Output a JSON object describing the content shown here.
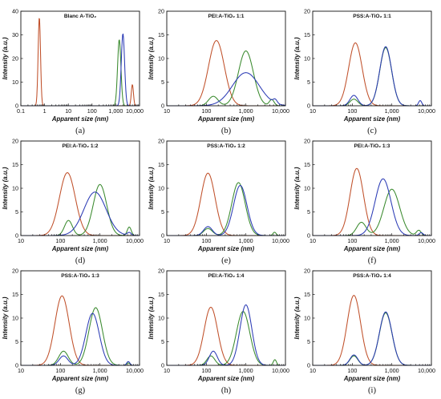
{
  "colors": {
    "red": "#c0502a",
    "green": "#3a8a2e",
    "blue": "#2b3bb5"
  },
  "chart_data": [
    {
      "type": "line",
      "letter": "(a)",
      "title": "Blanc A-TiO₂",
      "xlabel": "Apparent size (nm)",
      "ylabel": "Intensity (a.u.)",
      "xscale": "log",
      "xlim": [
        0.1,
        10000
      ],
      "ylim": [
        0,
        40
      ],
      "xticks": [
        "0.1",
        "1",
        "10",
        "100",
        "1,000",
        "10,000"
      ],
      "yticks": [
        "0",
        "10",
        "20",
        "30",
        "40"
      ],
      "series": [
        {
          "color": "red",
          "peaks": [
            [
              0.6,
              37.5,
              0.05
            ],
            [
              5000,
              9,
              0.045
            ]
          ]
        },
        {
          "color": "green",
          "peaks": [
            [
              1400,
              28,
              0.07
            ]
          ]
        },
        {
          "color": "blue",
          "peaks": [
            [
              2000,
              30.5,
              0.07
            ]
          ]
        }
      ]
    },
    {
      "type": "line",
      "letter": "(b)",
      "title": "PEI:A-TiO₂ 1:1",
      "xlabel": "Apparent size (nm)",
      "ylabel": "Intensity (a.u.)",
      "xscale": "log",
      "xlim": [
        10,
        10000
      ],
      "ylim": [
        0,
        20
      ],
      "xticks": [
        "10",
        "100",
        "1,000",
        "10,000"
      ],
      "yticks": [
        "0",
        "5",
        "10",
        "15",
        "20"
      ],
      "series": [
        {
          "color": "red",
          "peaks": [
            [
              180,
              13.8,
              0.2
            ]
          ]
        },
        {
          "color": "green",
          "peaks": [
            [
              150,
              2,
              0.12
            ],
            [
              1000,
              11.6,
              0.19
            ],
            [
              4500,
              1.3,
              0.06
            ]
          ]
        },
        {
          "color": "blue",
          "peaks": [
            [
              1000,
              7,
              0.34
            ],
            [
              5500,
              0.8,
              0.05
            ]
          ]
        }
      ]
    },
    {
      "type": "line",
      "letter": "(c)",
      "title": "PSS:A-TiO₂ 1:1",
      "xlabel": "Apparent size (nm)",
      "ylabel": "Intensity (a.u.)",
      "xscale": "log",
      "xlim": [
        10,
        10000
      ],
      "ylim": [
        0,
        20
      ],
      "xticks": [
        "10",
        "100",
        "1,000",
        "10,000"
      ],
      "yticks": [
        "0",
        "5",
        "10",
        "15",
        "20"
      ],
      "series": [
        {
          "color": "red",
          "peaks": [
            [
              120,
              13.3,
              0.17
            ]
          ]
        },
        {
          "color": "green",
          "peaks": [
            [
              110,
              1.4,
              0.1
            ],
            [
              700,
              12.3,
              0.15
            ]
          ]
        },
        {
          "color": "blue",
          "peaks": [
            [
              110,
              2.2,
              0.1
            ],
            [
              700,
              12.5,
              0.15
            ],
            [
              5200,
              1.1,
              0.04
            ]
          ]
        }
      ]
    },
    {
      "type": "line",
      "letter": "(d)",
      "title": "PEI:A-TiO₂ 1:2",
      "xlabel": "Apparent size (nm)",
      "ylabel": "Intensity (a.u.)",
      "xscale": "log",
      "xlim": [
        10,
        10000
      ],
      "ylim": [
        0,
        20
      ],
      "xticks": [
        "10",
        "100",
        "1,000",
        "10,000"
      ],
      "yticks": [
        "0",
        "5",
        "10",
        "15",
        "20"
      ],
      "series": [
        {
          "color": "red",
          "peaks": [
            [
              150,
              13.3,
              0.2
            ]
          ]
        },
        {
          "color": "green",
          "peaks": [
            [
              160,
              3.2,
              0.1
            ],
            [
              1000,
              10.8,
              0.17
            ],
            [
              5500,
              1.8,
              0.05
            ]
          ]
        },
        {
          "color": "blue",
          "peaks": [
            [
              750,
              9.2,
              0.28
            ],
            [
              5500,
              0.6,
              0.05
            ]
          ]
        }
      ]
    },
    {
      "type": "line",
      "letter": "(e)",
      "title": "PSS:A-TiO₂ 1:2",
      "xlabel": "Apparent size (nm)",
      "ylabel": "Intensity (a.u.)",
      "xscale": "log",
      "xlim": [
        10,
        10000
      ],
      "ylim": [
        0,
        20
      ],
      "xticks": [
        "10",
        "100",
        "1,000",
        "10,000"
      ],
      "yticks": [
        "0",
        "5",
        "10",
        "15",
        "20"
      ],
      "series": [
        {
          "color": "red",
          "peaks": [
            [
              110,
              13.2,
              0.18
            ]
          ]
        },
        {
          "color": "green",
          "peaks": [
            [
              110,
              1.5,
              0.11
            ],
            [
              650,
              11.2,
              0.17
            ],
            [
              5300,
              0.7,
              0.04
            ]
          ]
        },
        {
          "color": "blue",
          "peaks": [
            [
              110,
              1.9,
              0.11
            ],
            [
              720,
              10.6,
              0.17
            ]
          ]
        }
      ]
    },
    {
      "type": "line",
      "letter": "(f)",
      "title": "PEI:A-TiO₂ 1:3",
      "xlabel": "Apparent size (nm)",
      "ylabel": "Intensity (a.u.)",
      "xscale": "log",
      "xlim": [
        10,
        10000
      ],
      "ylim": [
        0,
        20
      ],
      "xticks": [
        "10",
        "100",
        "1,000",
        "10,000"
      ],
      "yticks": [
        "0",
        "5",
        "10",
        "15",
        "20"
      ],
      "series": [
        {
          "color": "red",
          "peaks": [
            [
              130,
              14.2,
              0.17
            ]
          ]
        },
        {
          "color": "green",
          "peaks": [
            [
              170,
              2.8,
              0.12
            ],
            [
              1000,
              9.8,
              0.2
            ],
            [
              4800,
              1.1,
              0.06
            ]
          ]
        },
        {
          "color": "blue",
          "peaks": [
            [
              600,
              12,
              0.2
            ],
            [
              5500,
              0.6,
              0.05
            ]
          ]
        }
      ]
    },
    {
      "type": "line",
      "letter": "(g)",
      "title": "PSS:A-TiO₂ 1:3",
      "xlabel": "Apparent size (nm)",
      "ylabel": "Intensity (a.u.)",
      "xscale": "log",
      "xlim": [
        10,
        10000
      ],
      "ylim": [
        0,
        20
      ],
      "xticks": [
        "10",
        "100",
        "1,000",
        "10,000"
      ],
      "yticks": [
        "0",
        "5",
        "10",
        "15",
        "20"
      ],
      "series": [
        {
          "color": "red",
          "peaks": [
            [
              110,
              14.7,
              0.18
            ]
          ]
        },
        {
          "color": "green",
          "peaks": [
            [
              120,
              3,
              0.12
            ],
            [
              780,
              12.2,
              0.17
            ],
            [
              5200,
              0.5,
              0.04
            ]
          ]
        },
        {
          "color": "blue",
          "peaks": [
            [
              120,
              2,
              0.11
            ],
            [
              650,
              11,
              0.17
            ],
            [
              5200,
              0.8,
              0.04
            ]
          ]
        }
      ]
    },
    {
      "type": "line",
      "letter": "(h)",
      "title": "PEI:A-TiO₂ 1:4",
      "xlabel": "Apparent size (nm)",
      "ylabel": "Intensity (a.u.)",
      "xscale": "log",
      "xlim": [
        10,
        10000
      ],
      "ylim": [
        0,
        20
      ],
      "xticks": [
        "10",
        "100",
        "1,000",
        "10,000"
      ],
      "yticks": [
        "0",
        "5",
        "10",
        "15",
        "20"
      ],
      "series": [
        {
          "color": "red",
          "peaks": [
            [
              130,
              12.3,
              0.17
            ]
          ]
        },
        {
          "color": "green",
          "peaks": [
            [
              130,
              2,
              0.1
            ],
            [
              850,
              11.4,
              0.17
            ],
            [
              5400,
              1.2,
              0.04
            ]
          ]
        },
        {
          "color": "blue",
          "peaks": [
            [
              150,
              3,
              0.1
            ],
            [
              1000,
              12.8,
              0.15
            ]
          ]
        }
      ]
    },
    {
      "type": "line",
      "letter": "(i)",
      "title": "PSS:A-TiO₂ 1:4",
      "xlabel": "Apparent size (nm)",
      "ylabel": "Intensity (a.u.)",
      "xscale": "log",
      "xlim": [
        10,
        10000
      ],
      "ylim": [
        0,
        20
      ],
      "xticks": [
        "10",
        "100",
        "1,000",
        "10,000"
      ],
      "yticks": [
        "0",
        "5",
        "10",
        "15",
        "20"
      ],
      "series": [
        {
          "color": "red",
          "peaks": [
            [
              110,
              14.8,
              0.17
            ]
          ]
        },
        {
          "color": "green",
          "peaks": [
            [
              110,
              2,
              0.1
            ],
            [
              700,
              11.1,
              0.16
            ]
          ]
        },
        {
          "color": "blue",
          "peaks": [
            [
              110,
              2.2,
              0.1
            ],
            [
              700,
              11.3,
              0.16
            ]
          ]
        }
      ]
    }
  ]
}
